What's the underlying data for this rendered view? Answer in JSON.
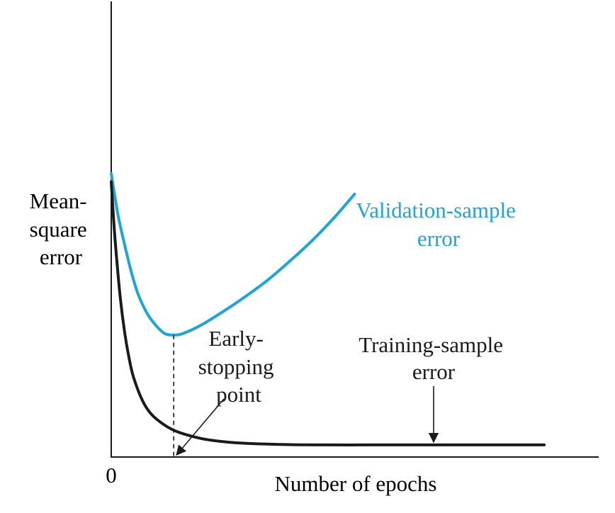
{
  "chart_data": {
    "type": "line",
    "title": "",
    "xlabel": "Number of epochs",
    "ylabel": [
      "Mean-",
      "square",
      "error"
    ],
    "x_tick_labels": [
      "0"
    ],
    "grid": false,
    "legend": "none",
    "x_range": [
      0,
      10
    ],
    "y_range": [
      0,
      10
    ],
    "series": [
      {
        "name": [
          "Validation-sample",
          "error"
        ],
        "color": "#1aa6dc",
        "x": [
          0,
          0.15,
          0.3,
          0.45,
          0.6,
          0.8,
          1.0,
          1.2,
          1.4,
          1.6,
          2.0,
          2.5,
          3.0,
          3.5,
          4.0,
          4.5,
          5.0,
          5.45
        ],
        "y": [
          10.0,
          8.5,
          7.4,
          6.4,
          5.6,
          4.9,
          4.45,
          4.15,
          4.1,
          4.15,
          4.45,
          4.95,
          5.5,
          6.1,
          6.8,
          7.55,
          8.4,
          9.25
        ]
      },
      {
        "name": [
          "Training-sample",
          "error"
        ],
        "color": "#1a1a1a",
        "x": [
          0,
          0.05,
          0.1,
          0.2,
          0.3,
          0.4,
          0.5,
          0.7,
          0.9,
          1.2,
          1.5,
          2.0,
          2.5,
          3.0,
          4.0,
          5.0,
          6.0,
          7.0,
          8.0,
          9.0,
          9.7
        ],
        "y": [
          9.7,
          8.4,
          7.3,
          5.5,
          4.2,
          3.25,
          2.55,
          1.7,
          1.2,
          0.8,
          0.55,
          0.32,
          0.2,
          0.14,
          0.09,
          0.08,
          0.08,
          0.08,
          0.08,
          0.08,
          0.08
        ]
      }
    ],
    "annotations": [
      {
        "text": [
          "Early-",
          "stopping",
          "point"
        ],
        "points_to_x": 1.4
      }
    ]
  }
}
